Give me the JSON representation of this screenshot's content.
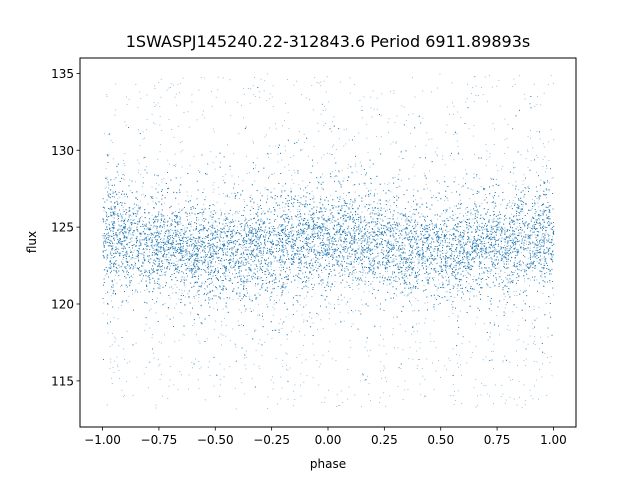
{
  "chart_data": {
    "type": "scatter",
    "title": "1SWASPJ145240.22-312843.6 Period 6911.89893s",
    "xlabel": "phase",
    "ylabel": "flux",
    "xlim": [
      -1.1,
      1.1
    ],
    "ylim": [
      112.0,
      136.0
    ],
    "grid": false,
    "marker_color": "#1f77b4",
    "x_ticks": [
      {
        "value": -1.0,
        "label": "−1.00"
      },
      {
        "value": -0.75,
        "label": "−0.75"
      },
      {
        "value": -0.5,
        "label": "−0.50"
      },
      {
        "value": -0.25,
        "label": "−0.25"
      },
      {
        "value": 0.0,
        "label": "0.00"
      },
      {
        "value": 0.25,
        "label": "0.25"
      },
      {
        "value": 0.5,
        "label": "0.50"
      },
      {
        "value": 0.75,
        "label": "0.75"
      },
      {
        "value": 1.0,
        "label": "1.00"
      }
    ],
    "y_ticks": [
      {
        "value": 115,
        "label": "115"
      },
      {
        "value": 120,
        "label": "120"
      },
      {
        "value": 125,
        "label": "125"
      },
      {
        "value": 130,
        "label": "130"
      },
      {
        "value": 135,
        "label": "135"
      }
    ],
    "series": [
      {
        "phase_range": [
          -1.0,
          1.0
        ],
        "flux_range": [
          113.2,
          135.0
        ],
        "trend": {
          "phase": [
            -1.0,
            -0.75,
            -0.5,
            -0.25,
            0.0,
            0.25,
            0.5,
            0.75,
            1.0
          ],
          "flux_median": [
            124.4,
            124.0,
            123.4,
            123.7,
            124.4,
            124.0,
            123.5,
            123.9,
            124.4
          ],
          "flux_spread_sd": [
            1.6,
            1.5,
            1.5,
            1.5,
            1.6,
            1.5,
            1.5,
            1.5,
            1.6
          ]
        },
        "point_count_approx": 200000
      }
    ]
  }
}
